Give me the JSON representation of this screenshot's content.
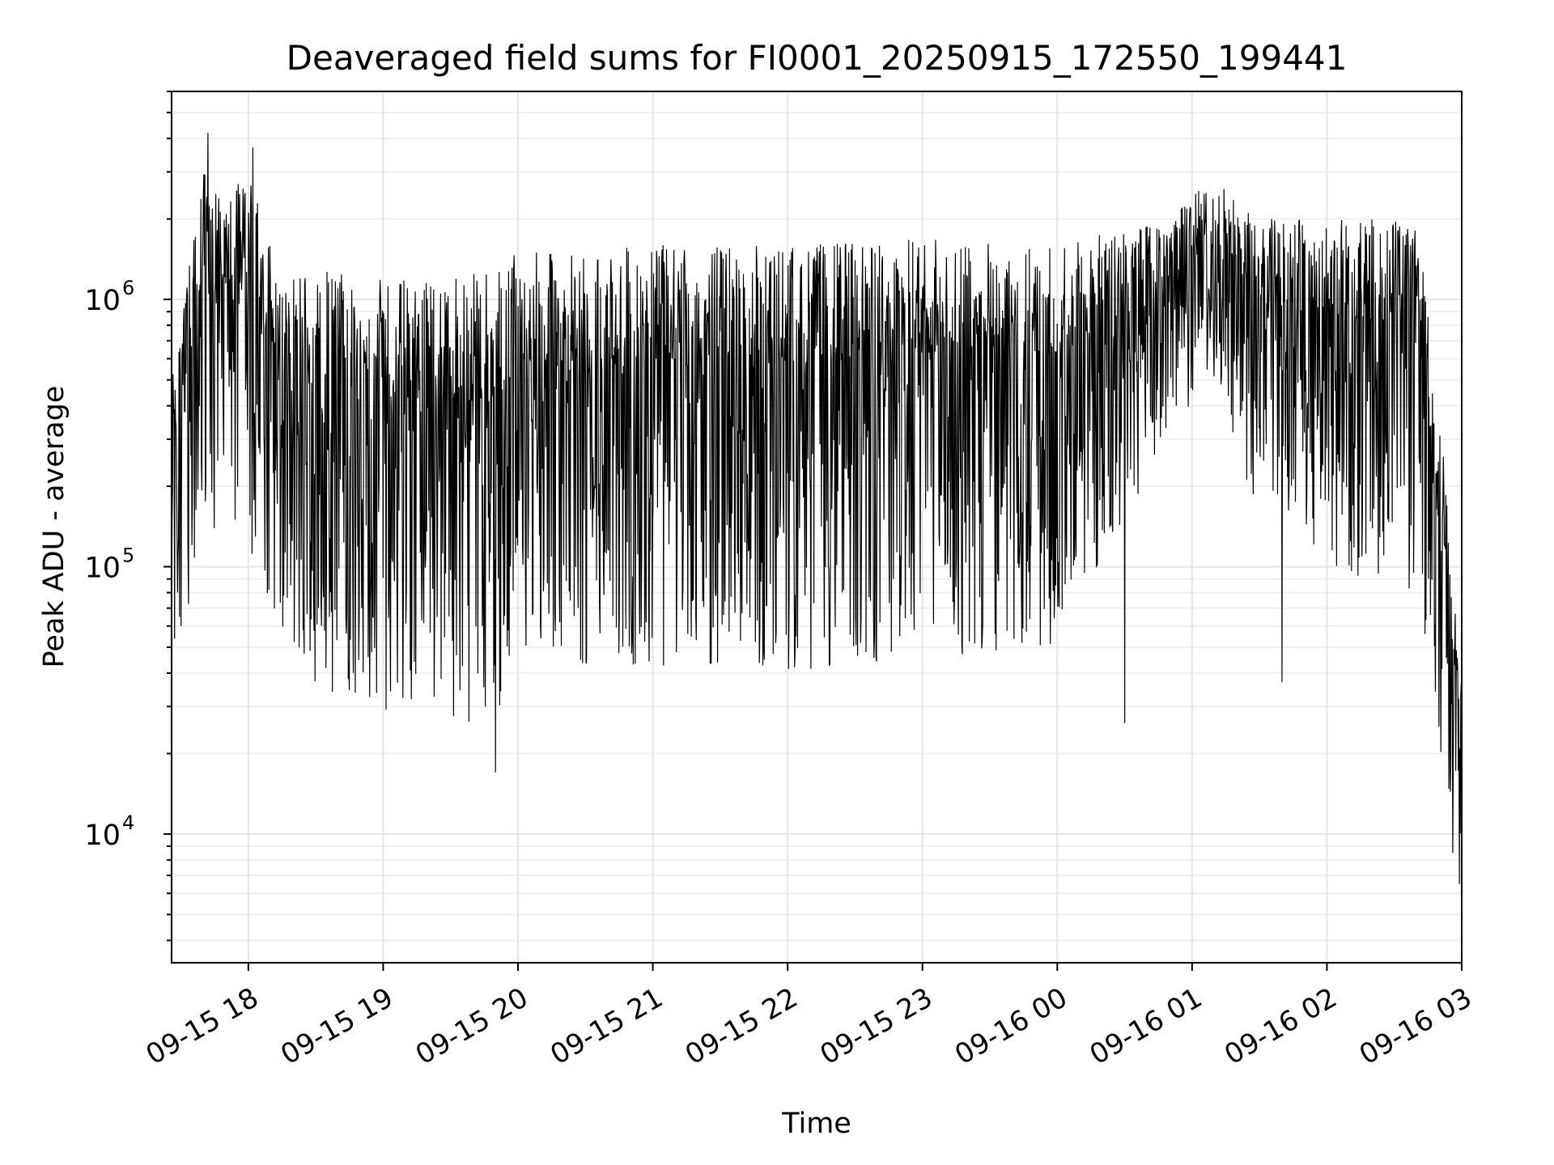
{
  "chart_data": {
    "type": "line",
    "title": "Deaveraged field sums for FI0001_20250915_172550_199441",
    "xlabel": "Time",
    "ylabel": "Peak ADU - average",
    "yscale": "log",
    "grid": true,
    "xlim": [
      "2025-09-15 17:25:50",
      "2025-09-16 03:00:00"
    ],
    "ylim": [
      3300,
      6000000
    ],
    "xticks": [
      {
        "time": "2025-09-15 18:00",
        "label": "09-15 18"
      },
      {
        "time": "2025-09-15 19:00",
        "label": "09-15 19"
      },
      {
        "time": "2025-09-15 20:00",
        "label": "09-15 20"
      },
      {
        "time": "2025-09-15 21:00",
        "label": "09-15 21"
      },
      {
        "time": "2025-09-15 22:00",
        "label": "09-15 22"
      },
      {
        "time": "2025-09-15 23:00",
        "label": "09-15 23"
      },
      {
        "time": "2025-09-16 00:00",
        "label": "09-16 00"
      },
      {
        "time": "2025-09-16 01:00",
        "label": "09-16 01"
      },
      {
        "time": "2025-09-16 02:00",
        "label": "09-16 02"
      },
      {
        "time": "2025-09-16 03:00",
        "label": "09-16 03"
      }
    ],
    "yticks": [
      {
        "value": 10000,
        "base": "10",
        "exp": "4"
      },
      {
        "value": 100000,
        "base": "10",
        "exp": "5"
      },
      {
        "value": 1000000,
        "base": "10",
        "exp": "6"
      }
    ],
    "series": [
      {
        "color": "#000000",
        "envelope": [
          {
            "time": "2025-09-15 17:26",
            "low": 45000,
            "high": 500000
          },
          {
            "time": "2025-09-15 17:40",
            "low": 90000,
            "high": 3000000
          },
          {
            "time": "2025-09-15 17:50",
            "low": 150000,
            "high": 2500000
          },
          {
            "time": "2025-09-15 18:00",
            "low": 100000,
            "high": 3000000
          },
          {
            "time": "2025-09-15 18:15",
            "low": 60000,
            "high": 1200000
          },
          {
            "time": "2025-09-15 18:30",
            "low": 35000,
            "high": 1300000
          },
          {
            "time": "2025-09-15 19:00",
            "low": 28000,
            "high": 1200000
          },
          {
            "time": "2025-09-15 19:30",
            "low": 28000,
            "high": 1200000
          },
          {
            "time": "2025-09-15 19:50",
            "low": 22000,
            "high": 1300000
          },
          {
            "time": "2025-09-15 20:00",
            "low": 50000,
            "high": 1500000
          },
          {
            "time": "2025-09-15 20:30",
            "low": 42000,
            "high": 1500000
          },
          {
            "time": "2025-09-15 21:00",
            "low": 40000,
            "high": 1600000
          },
          {
            "time": "2025-09-15 22:00",
            "low": 40000,
            "high": 1600000
          },
          {
            "time": "2025-09-15 23:00",
            "low": 45000,
            "high": 1700000
          },
          {
            "time": "2025-09-16 00:00",
            "low": 50000,
            "high": 1600000
          },
          {
            "time": "2025-09-16 00:50",
            "low": 300000,
            "high": 2000000
          },
          {
            "time": "2025-09-16 01:10",
            "low": 500000,
            "high": 3000000
          },
          {
            "time": "2025-09-16 01:30",
            "low": 150000,
            "high": 2000000
          },
          {
            "time": "2025-09-16 02:00",
            "low": 100000,
            "high": 2000000
          },
          {
            "time": "2025-09-16 02:40",
            "low": 80000,
            "high": 2000000
          },
          {
            "time": "2025-09-16 02:50",
            "low": 20000,
            "high": 400000
          },
          {
            "time": "2025-09-16 03:00",
            "low": 7000,
            "high": 40000
          }
        ],
        "extremes": [
          {
            "time": "2025-09-15 17:42",
            "value": 4200000
          },
          {
            "time": "2025-09-15 18:02",
            "value": 3700000
          },
          {
            "time": "2025-09-15 19:50",
            "value": 17000
          },
          {
            "time": "2025-09-16 00:30",
            "value": 26000
          },
          {
            "time": "2025-09-16 01:40",
            "value": 37000
          },
          {
            "time": "2025-09-16 02:56",
            "value": 8500
          },
          {
            "time": "2025-09-16 02:59",
            "value": 6500
          }
        ]
      }
    ]
  }
}
